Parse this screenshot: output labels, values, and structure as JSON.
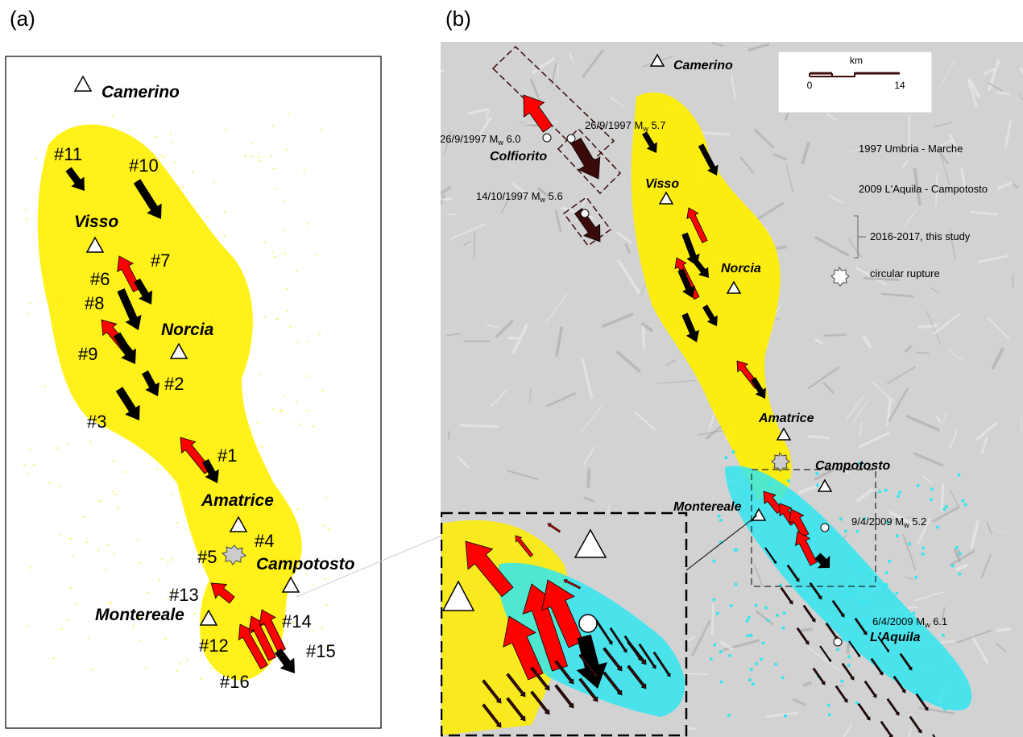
{
  "panel_a": {
    "label": "(a)",
    "places": [
      "Camerino",
      "Visso",
      "Norcia",
      "Amatrice",
      "Campotosto",
      "Montereale"
    ],
    "events": [
      "#1",
      "#2",
      "#3",
      "#4",
      "#5",
      "#6",
      "#7",
      "#8",
      "#9",
      "#10",
      "#11",
      "#12",
      "#13",
      "#14",
      "#15",
      "#16"
    ]
  },
  "panel_b": {
    "label": "(b)",
    "places": [
      "Camerino",
      "Visso",
      "Norcia",
      "Amatrice",
      "Campotosto",
      "Montereale",
      "L'Aquila",
      "Colfiorito"
    ],
    "mw": {
      "symbol": "M",
      "subscript": "w"
    },
    "earthquakes": [
      {
        "date": "26/9/1997",
        "magnitude": "6.0"
      },
      {
        "date": "26/9/1997",
        "magnitude": "5.7"
      },
      {
        "date": "14/10/1997",
        "magnitude": "5.6"
      },
      {
        "date": "9/4/2009",
        "magnitude": "5.2"
      },
      {
        "date": "6/4/2009",
        "magnitude": "6.1"
      }
    ],
    "scale_bar": {
      "unit": "km",
      "start": 0,
      "end": 14
    },
    "legend": [
      "1997 Umbria - Marche",
      "2009 L'Aquila - Campotosto",
      "2016-2017, this study",
      "circular rupture"
    ]
  }
}
